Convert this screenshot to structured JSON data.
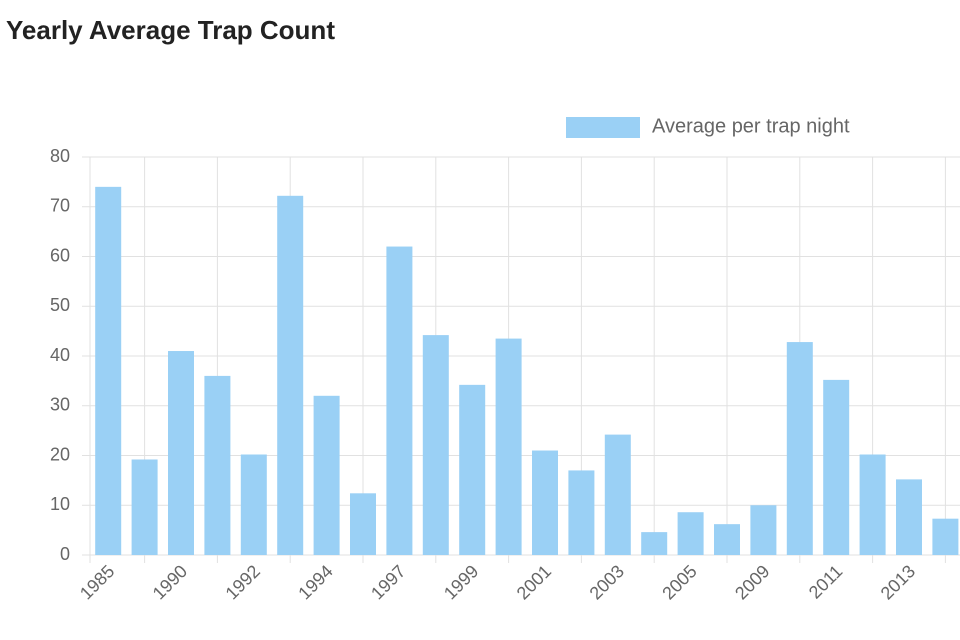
{
  "chart_data": {
    "type": "bar",
    "title": "Yearly Average Trap Count",
    "categories": [
      "1985",
      null,
      "1990",
      null,
      "1992",
      null,
      "1994",
      null,
      "1997",
      null,
      "1999",
      null,
      "2001",
      null,
      "2003",
      null,
      "2005",
      null,
      "2009",
      null,
      "2011",
      null,
      "2013",
      null
    ],
    "series": [
      {
        "name": "Average per trap night",
        "color": "#9ad0f5",
        "values": [
          74,
          19.2,
          41,
          36,
          20.2,
          72.2,
          32,
          12.4,
          62,
          44.2,
          34.2,
          43.5,
          21,
          17,
          24.2,
          4.6,
          8.6,
          6.2,
          10,
          42.8,
          35.2,
          20.2,
          15.2,
          7.3
        ]
      }
    ],
    "ylim": [
      0,
      80
    ],
    "yticks": [
      0,
      10,
      20,
      30,
      40,
      50,
      60,
      70,
      80
    ],
    "grid": true,
    "legend": "top"
  }
}
